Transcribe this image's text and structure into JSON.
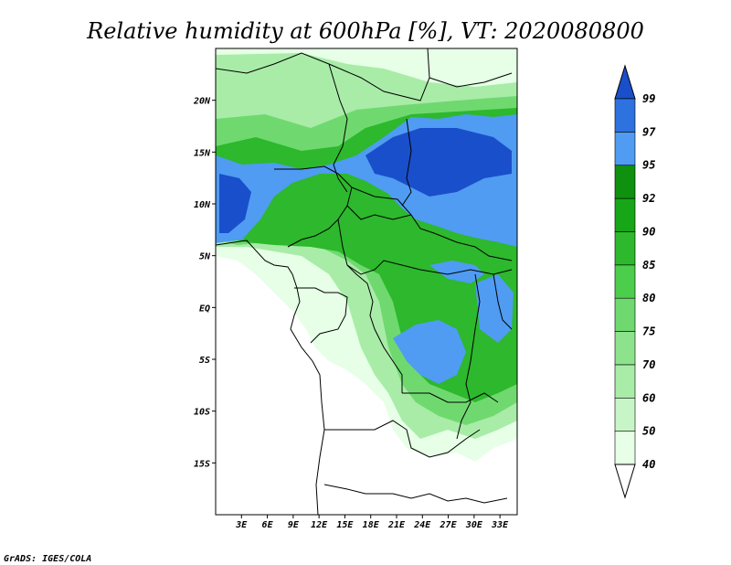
{
  "title": "Relative humidity at 600hPa [%], VT: 2020080800",
  "credit": "GrADS: IGES/COLA",
  "map": {
    "lon_range": [
      0,
      35
    ],
    "lat_range": [
      -20,
      25
    ],
    "lon_ticks": [
      "3E",
      "6E",
      "9E",
      "12E",
      "15E",
      "18E",
      "21E",
      "24E",
      "27E",
      "30E",
      "33E"
    ],
    "lat_ticks": [
      "20N",
      "15N",
      "10N",
      "5N",
      "EQ",
      "5S",
      "10S",
      "15S"
    ]
  },
  "colorbar": {
    "labels": [
      "40",
      "50",
      "60",
      "70",
      "75",
      "80",
      "85",
      "90",
      "92",
      "95",
      "97",
      "99"
    ],
    "colors": [
      "#ffffff",
      "#e6ffe6",
      "#c8f5c8",
      "#a8eca8",
      "#8ce38c",
      "#6fd96f",
      "#4ccd4c",
      "#2db82d",
      "#17a617",
      "#0f900f",
      "#4f9cf2",
      "#2e72df",
      "#1a4fcb"
    ]
  },
  "palette": {
    "rh40": "#e6ffe6",
    "rh60": "#a8eca8",
    "rh80": "#6fd96f",
    "rh90": "#2db82d",
    "rh95": "#4f9cf2",
    "rh97": "#2e72df",
    "rh99": "#1a4fcb"
  }
}
